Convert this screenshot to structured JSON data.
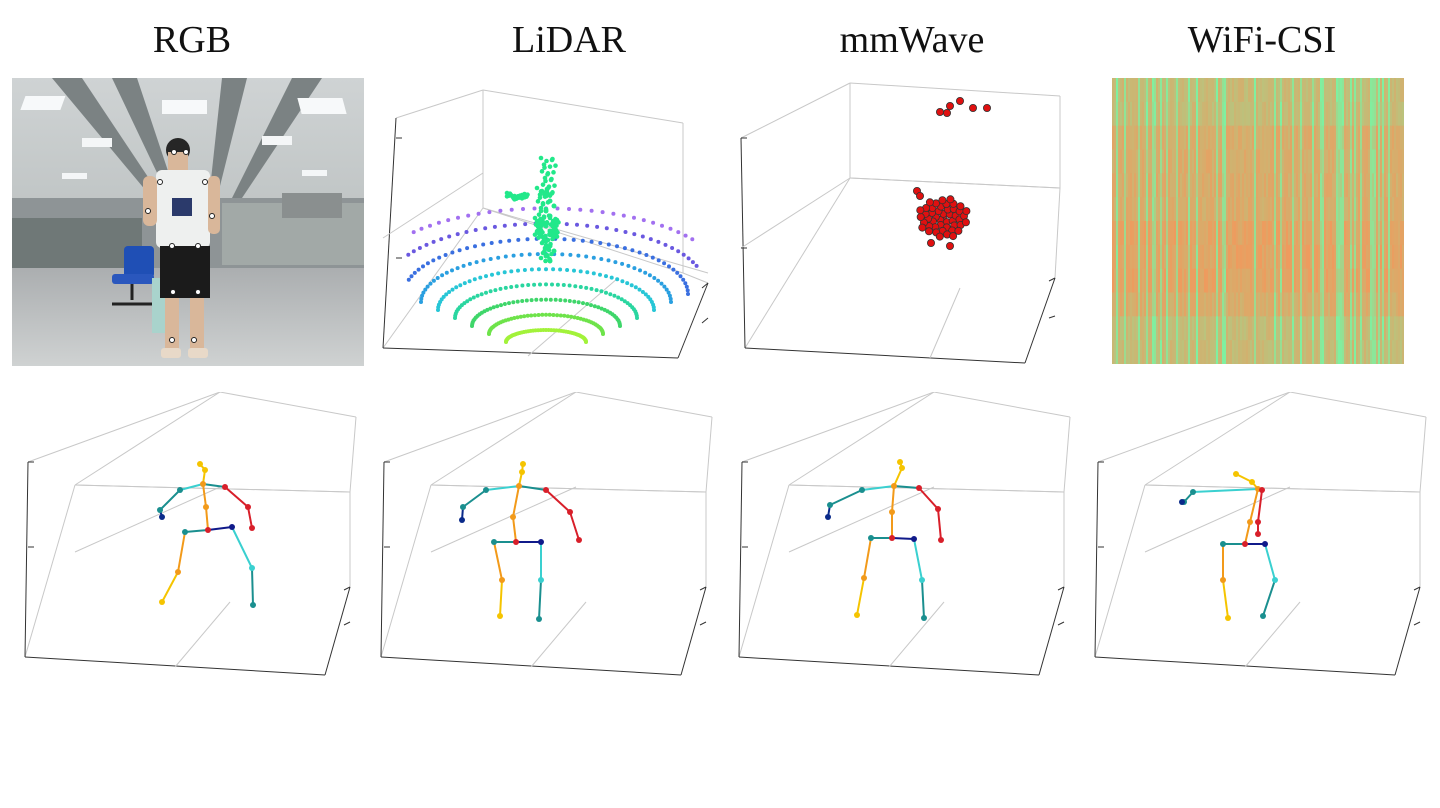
{
  "titles": [
    "RGB",
    "LiDAR",
    "mmWave",
    "WiFi-CSI"
  ],
  "colors": {
    "background": "#ffffff",
    "grid": "#c8c8c8",
    "axis": "#333333",
    "lidar_human": "#22e88a",
    "mmwave_points": "#e01010",
    "csi_base": "#f59a5a",
    "csi_cool": "#7ff2a0"
  },
  "skeleton_colors": {
    "head": "#f5c400",
    "spine": "#f29a1a",
    "left_arm": "#1a8f8f",
    "right_arm": "#d81f2a",
    "left_hand": "#0a2a8a",
    "shoulder_line": "#3ad0d0",
    "hip_line": "#101a8a",
    "left_leg": "#f29a1a",
    "left_foot": "#f5c400",
    "right_leg": "#3ad0d0",
    "right_foot": "#1a8f8f"
  }
}
